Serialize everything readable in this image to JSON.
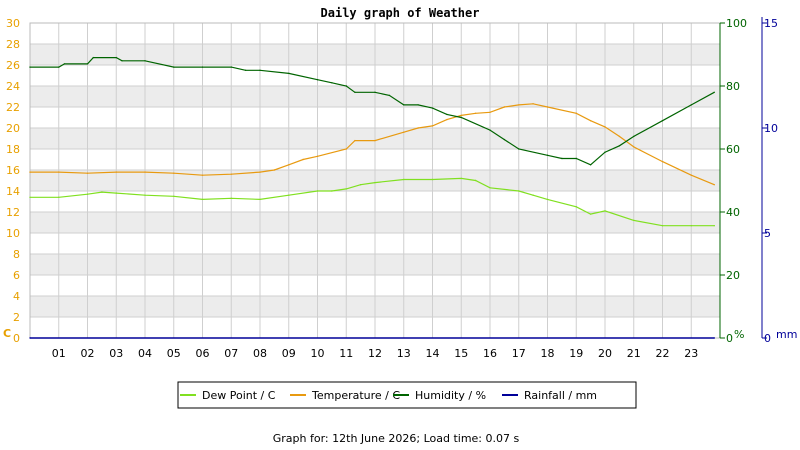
{
  "chart_data": {
    "type": "line",
    "title": "Daily graph of Weather",
    "footer": "Graph for: 12th June 2026; Load time: 0.07 s",
    "x_ticks": [
      "01",
      "02",
      "03",
      "04",
      "05",
      "06",
      "07",
      "08",
      "09",
      "10",
      "11",
      "12",
      "13",
      "14",
      "15",
      "16",
      "17",
      "18",
      "19",
      "20",
      "21",
      "22",
      "23"
    ],
    "x_range": [
      0,
      24
    ],
    "grid": true,
    "legend_position": "bottom-center",
    "axes": {
      "temp": {
        "side": "left",
        "unit_label": "C",
        "range": [
          0,
          30
        ],
        "ticks": [
          0,
          2,
          4,
          6,
          8,
          10,
          12,
          14,
          16,
          18,
          20,
          22,
          24,
          26,
          28,
          30
        ],
        "color": "#e8a000"
      },
      "humidity": {
        "side": "right",
        "unit_label": "%",
        "range": [
          0,
          100
        ],
        "ticks": [
          0,
          20,
          40,
          60,
          80,
          100
        ],
        "color": "#006400"
      },
      "rain": {
        "side": "right-outer",
        "unit_label": "mm",
        "range": [
          0,
          15
        ],
        "ticks": [
          0,
          5,
          10,
          15
        ],
        "color": "#000099"
      }
    },
    "series": [
      {
        "name": "Dew Point / C",
        "axis": "temp",
        "color": "#80e020",
        "x": [
          0,
          1,
          2,
          2.5,
          3,
          4,
          5,
          6,
          7,
          8,
          9,
          10,
          10.5,
          11,
          11.5,
          12,
          13,
          14,
          15,
          15.5,
          16,
          17,
          17.5,
          18,
          19,
          19.5,
          20,
          21,
          22,
          23,
          23.8
        ],
        "y": [
          13.4,
          13.4,
          13.7,
          13.9,
          13.8,
          13.6,
          13.5,
          13.2,
          13.3,
          13.2,
          13.6,
          14.0,
          14.0,
          14.2,
          14.6,
          14.8,
          15.1,
          15.1,
          15.2,
          15.0,
          14.3,
          14.0,
          13.6,
          13.2,
          12.5,
          11.8,
          12.1,
          11.2,
          10.7,
          10.7,
          10.7
        ]
      },
      {
        "name": "Temperature / C",
        "axis": "temp",
        "color": "#e89a10",
        "x": [
          0,
          1,
          2,
          3,
          4,
          5,
          6,
          7,
          8,
          8.5,
          9,
          9.5,
          10,
          11,
          11.3,
          12,
          13,
          13.5,
          14,
          14.5,
          15,
          15.5,
          16,
          16.5,
          17,
          17.5,
          18,
          19,
          19.5,
          20,
          20.5,
          21,
          22,
          23,
          23.8
        ],
        "y": [
          15.8,
          15.8,
          15.7,
          15.8,
          15.8,
          15.7,
          15.5,
          15.6,
          15.8,
          16.0,
          16.5,
          17.0,
          17.3,
          18.0,
          18.8,
          18.8,
          19.6,
          20.0,
          20.2,
          20.8,
          21.2,
          21.4,
          21.5,
          22.0,
          22.2,
          22.3,
          22.0,
          21.4,
          20.7,
          20.1,
          19.2,
          18.2,
          16.8,
          15.5,
          14.6
        ]
      },
      {
        "name": "Humidity / %",
        "axis": "humidity",
        "color": "#006400",
        "x": [
          0,
          1,
          1.2,
          2,
          2.2,
          3,
          3.2,
          4,
          5,
          6,
          7,
          7.5,
          8,
          9,
          10,
          10.5,
          11,
          11.3,
          12,
          12.5,
          13,
          13.5,
          14,
          14.5,
          15,
          16,
          16.5,
          17,
          18,
          18.5,
          19,
          19.5,
          20,
          20.5,
          21,
          22,
          23,
          23.8
        ],
        "y": [
          86,
          86,
          87,
          87,
          89,
          89,
          88,
          88,
          86,
          86,
          86,
          85,
          85,
          84,
          82,
          81,
          80,
          78,
          78,
          77,
          74,
          74,
          73,
          71,
          70,
          66,
          63,
          60,
          58,
          57,
          57,
          55,
          59,
          61,
          64,
          69,
          74,
          78
        ]
      },
      {
        "name": "Rainfall / mm",
        "axis": "rain",
        "color": "#000099",
        "x": [
          0,
          23.8
        ],
        "y": [
          0,
          0
        ]
      }
    ]
  },
  "colors": {
    "band": "#ececec",
    "grid": "#cfcfcf"
  }
}
